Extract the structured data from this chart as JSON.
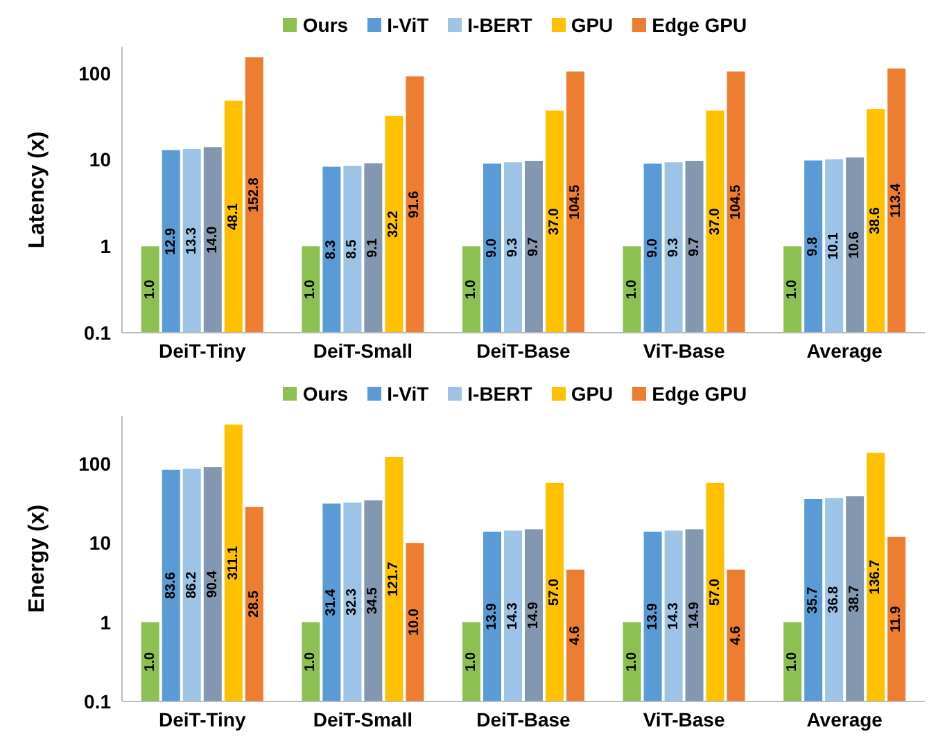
{
  "chart_data": [
    {
      "type": "bar",
      "ylabel": "Latency (x)",
      "categories": [
        "DeiT-Tiny",
        "DeiT-Small",
        "DeiT-Base",
        "ViT-Base",
        "Average"
      ],
      "log": true,
      "ylim": [
        0.1,
        200
      ],
      "yticks": [
        0.1,
        1,
        10,
        100
      ],
      "legend": "top",
      "data_labels": true,
      "series": [
        {
          "name": "Ours",
          "color": "#8cc152",
          "values": [
            1.0,
            1.0,
            1.0,
            1.0,
            1.0
          ],
          "value_labels": [
            "1.0",
            "1.0",
            "1.0",
            "1.0",
            "1.0"
          ]
        },
        {
          "name": "I-ViT",
          "color": "#5b9bd5",
          "values": [
            12.9,
            8.3,
            9.0,
            9.0,
            9.8
          ],
          "value_labels": [
            "12.9",
            "8.3",
            "9.0",
            "9.0",
            "9.8"
          ]
        },
        {
          "name": "I-BERT",
          "color": "#9dc3e6",
          "values": [
            13.3,
            8.5,
            9.3,
            9.3,
            10.1
          ],
          "value_labels": [
            "13.3",
            "8.5",
            "9.3",
            "9.3",
            "10.1"
          ]
        },
        {
          "color": "#8497b0",
          "values": [
            14.0,
            9.1,
            9.7,
            9.7,
            10.6
          ],
          "value_labels": [
            "14.0",
            "9.1",
            "9.7",
            "9.7",
            "10.6"
          ]
        },
        {
          "name": "GPU",
          "color": "#ffc000",
          "values": [
            48.1,
            32.2,
            37.0,
            37.0,
            38.6
          ],
          "value_labels": [
            "48.1",
            "32.2",
            "37.0",
            "37.0",
            "38.6"
          ]
        },
        {
          "name": "Edge GPU",
          "color": "#ed7d31",
          "values": [
            152.8,
            91.6,
            104.5,
            104.5,
            113.4
          ],
          "value_labels": [
            "152.8",
            "91.6",
            "104.5",
            "104.5",
            "113.4"
          ]
        }
      ]
    },
    {
      "type": "bar",
      "ylabel": "Energy (x)",
      "categories": [
        "DeiT-Tiny",
        "DeiT-Small",
        "DeiT-Base",
        "ViT-Base",
        "Average"
      ],
      "log": true,
      "ylim": [
        0.1,
        400
      ],
      "yticks": [
        0.1,
        1,
        10,
        100
      ],
      "legend": "top",
      "data_labels": true,
      "series": [
        {
          "name": "Ours",
          "color": "#8cc152",
          "values": [
            1.0,
            1.0,
            1.0,
            1.0,
            1.0
          ],
          "value_labels": [
            "1.0",
            "1.0",
            "1.0",
            "1.0",
            "1.0"
          ]
        },
        {
          "name": "I-ViT",
          "color": "#5b9bd5",
          "values": [
            83.6,
            31.4,
            13.9,
            13.9,
            35.7
          ],
          "value_labels": [
            "83.6",
            "31.4",
            "13.9",
            "13.9",
            "35.7"
          ]
        },
        {
          "name": "I-BERT",
          "color": "#9dc3e6",
          "values": [
            86.2,
            32.3,
            14.3,
            14.3,
            36.8
          ],
          "value_labels": [
            "86.2",
            "32.3",
            "14.3",
            "14.3",
            "36.8"
          ]
        },
        {
          "color": "#8497b0",
          "values": [
            90.4,
            34.5,
            14.9,
            14.9,
            38.7
          ],
          "value_labels": [
            "90.4",
            "34.5",
            "14.9",
            "14.9",
            "38.7"
          ]
        },
        {
          "name": "GPU",
          "color": "#ffc000",
          "values": [
            311.1,
            121.7,
            57.0,
            57.0,
            136.7
          ],
          "value_labels": [
            "311.1",
            "121.7",
            "57.0",
            "57.0",
            "136.7"
          ]
        },
        {
          "name": "Edge GPU",
          "color": "#ed7d31",
          "values": [
            28.5,
            10.0,
            4.6,
            4.6,
            11.9
          ],
          "value_labels": [
            "28.5",
            "10.0",
            "4.6",
            "4.6",
            "11.9"
          ]
        }
      ]
    }
  ]
}
